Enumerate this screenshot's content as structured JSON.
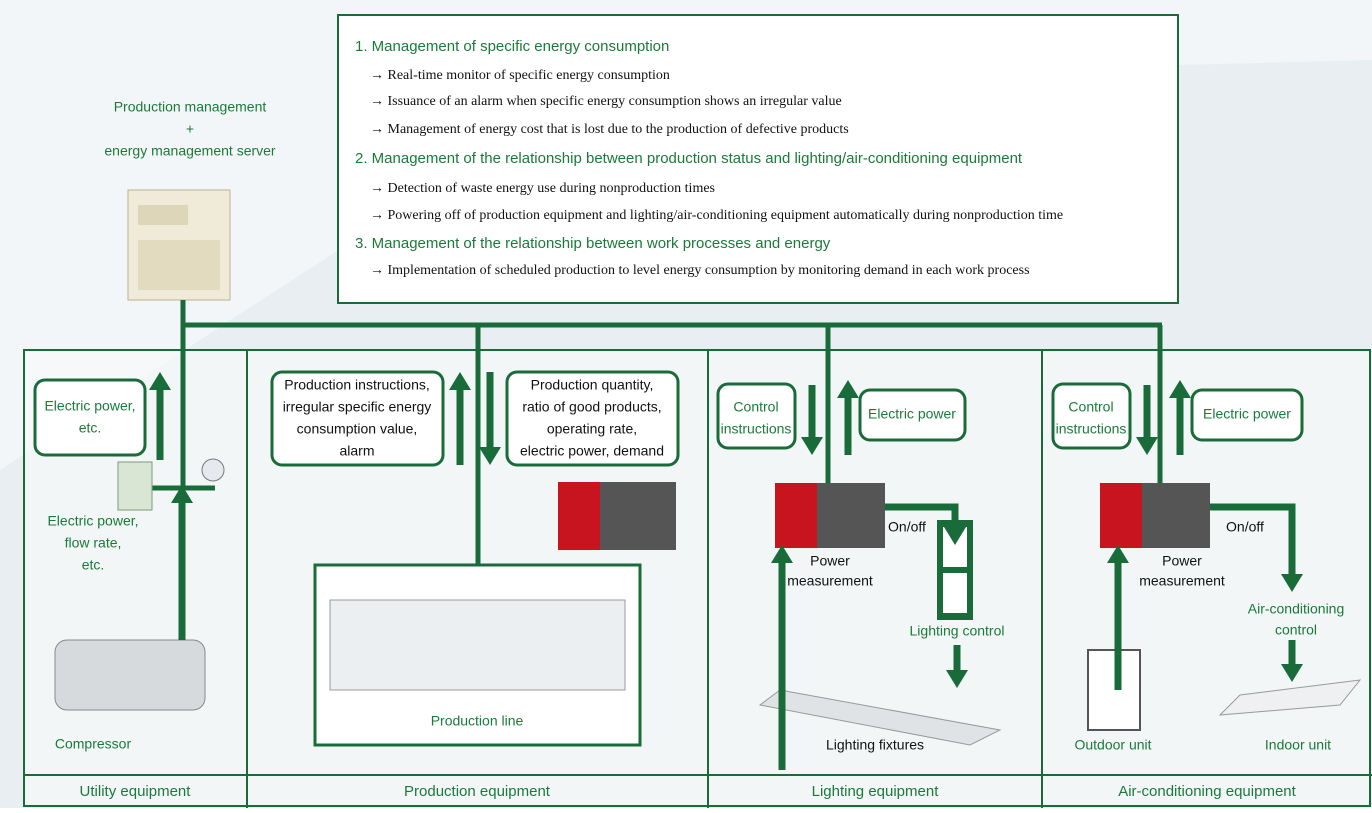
{
  "server": {
    "label": [
      "Production management",
      "+",
      "energy management server"
    ]
  },
  "functions": [
    {
      "heading": "1. Management of specific energy consumption",
      "items": [
        "→ Real-time monitor of specific energy consumption",
        "→ Issuance of an alarm when specific energy consumption shows an irregular value",
        "→ Management of energy cost that is lost due to the production of defective products"
      ]
    },
    {
      "heading": "2. Management of the relationship between production status and lighting/air-conditioning equipment",
      "items": [
        "→ Detection of waste energy use during nonproduction times",
        "→ Powering off of production equipment and lighting/air-conditioning equipment automatically during nonproduction time"
      ]
    },
    {
      "heading": "3. Management of the relationship between work processes and energy",
      "items": [
        "→ Implementation of scheduled production to level energy consumption by monitoring demand in each work process"
      ]
    }
  ],
  "utility": {
    "title": "Utility equipment",
    "callout": [
      "Electric power,",
      "etc."
    ],
    "sensor_label": [
      "Electric power,",
      "flow rate,",
      "etc."
    ],
    "compressor_label": "Compressor"
  },
  "production": {
    "title": "Production equipment",
    "callout_instructions": [
      "Production instructions,",
      "irregular specific energy",
      "consumption value,",
      "alarm"
    ],
    "callout_results": [
      "Production quantity,",
      "ratio of good products,",
      "operating rate,",
      "electric power, demand"
    ],
    "line_label": "Production line"
  },
  "lighting": {
    "title": "Lighting equipment",
    "callout_control": [
      "Control",
      "instructions"
    ],
    "callout_power": "Electric power",
    "switch_label": "On/off",
    "measurement_label": [
      "Power",
      "measurement"
    ],
    "control_label": "Lighting control",
    "fixture_label": "Lighting fixtures"
  },
  "air_conditioning": {
    "title": "Air-conditioning equipment",
    "callout_control": [
      "Control",
      "instructions"
    ],
    "callout_power": "Electric power",
    "switch_label": "On/off",
    "measurement_label": [
      "Power",
      "measurement"
    ],
    "control_label": [
      "Air-conditioning",
      "control"
    ],
    "outdoor_label": "Outdoor unit",
    "indoor_label": "Indoor unit"
  }
}
